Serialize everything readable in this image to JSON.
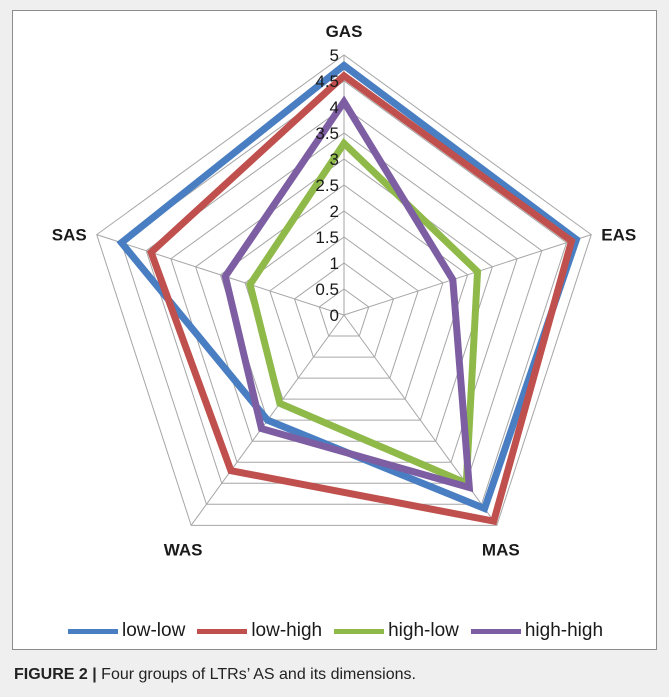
{
  "chart_data": {
    "type": "radar",
    "axes": [
      "GAS",
      "EAS",
      "MAS",
      "WAS",
      "SAS"
    ],
    "rlim": [
      0,
      5
    ],
    "ticks": [
      "0",
      "0.5",
      "1",
      "1.5",
      "2",
      "2.5",
      "3",
      "3.5",
      "4",
      "4.5",
      "5"
    ],
    "series": [
      {
        "name": "low-low",
        "color": "#4a7ec2",
        "values": [
          4.8,
          4.7,
          4.6,
          2.5,
          4.5
        ]
      },
      {
        "name": "low-high",
        "color": "#c0504d",
        "values": [
          4.6,
          4.6,
          4.9,
          3.7,
          3.9
        ]
      },
      {
        "name": "high-low",
        "color": "#8fba4a",
        "values": [
          3.3,
          2.7,
          4.0,
          2.1,
          1.9
        ]
      },
      {
        "name": "high-high",
        "color": "#7e5ea2",
        "values": [
          4.1,
          2.2,
          4.1,
          2.7,
          2.4
        ]
      }
    ],
    "grid": true,
    "legend_position": "bottom"
  },
  "caption": {
    "label": "FIGURE 2 |",
    "text": " Four groups of LTRs’ AS and its dimensions."
  }
}
